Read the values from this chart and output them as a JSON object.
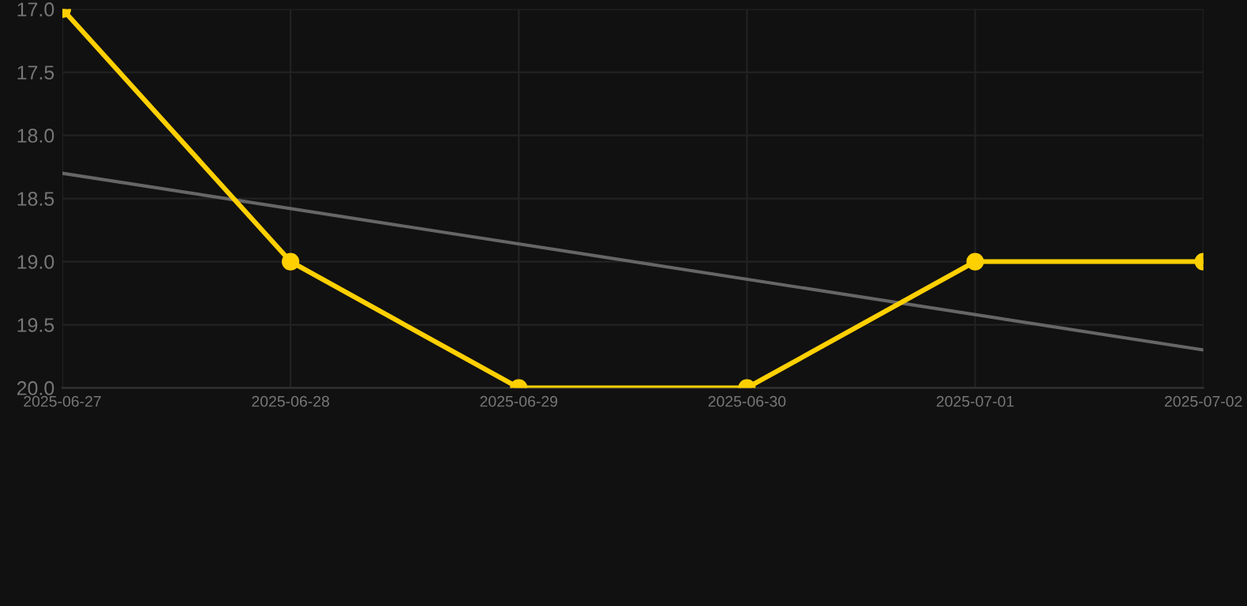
{
  "chart_data": {
    "type": "line",
    "x": [
      "2025-06-27",
      "2025-06-28",
      "2025-06-29",
      "2025-06-30",
      "2025-07-01",
      "2025-07-02"
    ],
    "series": [
      {
        "color": "#ffd000",
        "values": [
          17.0,
          19.0,
          20.0,
          20.0,
          19.0,
          19.0
        ],
        "marker": "circle"
      },
      {
        "type": "line",
        "color": "#666666",
        "x": [
          "2025-06-27",
          "2025-07-02"
        ],
        "values": [
          18.3,
          19.7
        ],
        "marker": "none"
      }
    ],
    "ylim": [
      20.0,
      17.0
    ],
    "yticks": [
      {
        "value": 17.0,
        "label": "17.0"
      },
      {
        "value": 17.5,
        "label": "17.5"
      },
      {
        "value": 18.0,
        "label": "18.0"
      },
      {
        "value": 18.5,
        "label": "18.5"
      },
      {
        "value": 19.0,
        "label": "19.0"
      },
      {
        "value": 19.5,
        "label": "19.5"
      },
      {
        "value": 20.0,
        "label": "20.0"
      }
    ],
    "xlim": [
      "2025-06-27",
      "2025-07-02"
    ],
    "xticks": [
      {
        "value": "2025-06-27",
        "label": "2025-06-27"
      },
      {
        "value": "2025-06-28",
        "label": "2025-06-28"
      },
      {
        "value": "2025-06-29",
        "label": "2025-06-29"
      },
      {
        "value": "2025-06-30",
        "label": "2025-06-30"
      },
      {
        "value": "2025-07-01",
        "label": "2025-07-01"
      },
      {
        "value": "2025-07-02",
        "label": "2025-07-02"
      }
    ],
    "grid": true
  }
}
